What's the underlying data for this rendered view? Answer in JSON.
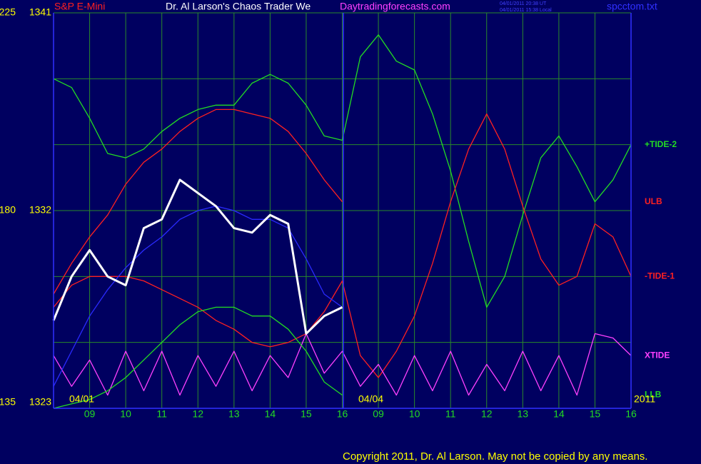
{
  "header": {
    "instrument": "S&P E-Mini",
    "title": "Dr. Al Larson's Chaos Trader We",
    "site": "Daytradingforecasts.com",
    "timestamp_ut": "04/01/2011 20:38 UT",
    "timestamp_local": "04/01/2011 15:38 Local",
    "file": "spcctom.txt"
  },
  "footer": {
    "copyright": "Copyright 2011, Dr. Al Larson. May not be copied by any means."
  },
  "chart_data": {
    "type": "line",
    "annotations": [
      "04/01",
      "04/04",
      "2011"
    ],
    "x": [
      0,
      0.5,
      1,
      1.5,
      2,
      2.5,
      3,
      3.5,
      4,
      4.5,
      5,
      5.5,
      6,
      6.5,
      7,
      7.5,
      8,
      8.5,
      9,
      9.5,
      10,
      10.5,
      11,
      11.5,
      12,
      12.5,
      13,
      13.5,
      14,
      14.5,
      15,
      15.5,
      16
    ],
    "xlim": [
      0,
      16
    ],
    "xticks": [
      {
        "value": 1,
        "label": "09"
      },
      {
        "value": 2,
        "label": "10"
      },
      {
        "value": 3,
        "label": "11"
      },
      {
        "value": 4,
        "label": "12"
      },
      {
        "value": 5,
        "label": "13"
      },
      {
        "value": 6,
        "label": "14"
      },
      {
        "value": 7,
        "label": "15"
      },
      {
        "value": 8,
        "label": "16"
      },
      {
        "value": 9,
        "label": "09"
      },
      {
        "value": 10,
        "label": "10"
      },
      {
        "value": 11,
        "label": "11"
      },
      {
        "value": 12,
        "label": "12"
      },
      {
        "value": 13,
        "label": "13"
      },
      {
        "value": 14,
        "label": "14"
      },
      {
        "value": 15,
        "label": "15"
      },
      {
        "value": 16,
        "label": "16"
      }
    ],
    "ylim": [
      135,
      225
    ],
    "yticks": [
      135,
      180,
      225
    ],
    "y2lim": [
      1323,
      1341
    ],
    "y2ticks": [
      1323,
      1332,
      1341
    ],
    "ygrid": [
      135,
      150,
      165,
      180,
      195,
      210,
      225
    ],
    "grid": true,
    "series": [
      {
        "name": "+TIDE-2",
        "color": "#22dd22",
        "values": [
          210,
          208,
          201,
          193,
          192,
          194,
          198,
          201,
          203,
          204,
          204,
          209,
          211,
          209,
          204,
          197,
          196,
          215,
          220,
          214,
          212,
          202,
          189,
          173,
          158,
          165,
          179,
          192,
          197,
          190,
          182,
          187,
          195
        ]
      },
      {
        "name": "ULB",
        "color": "#ff2020",
        "values": [
          161,
          168,
          174,
          179,
          186,
          191,
          194,
          198,
          201,
          203,
          203,
          202,
          201,
          198,
          193,
          187,
          182,
          null,
          null,
          null,
          null,
          null,
          null,
          null,
          null,
          null,
          null,
          null,
          null,
          null,
          null,
          null,
          null
        ]
      },
      {
        "name": "-TIDE-1",
        "color": "#ff2020",
        "values": [
          158,
          163,
          165,
          165,
          165,
          164,
          162,
          160,
          158,
          155,
          153,
          150,
          149,
          150,
          152,
          157,
          164,
          147,
          142,
          148,
          156,
          168,
          182,
          194,
          202,
          194,
          181,
          169,
          163,
          165,
          177,
          174,
          165
        ]
      },
      {
        "name": "XTIDE",
        "color": "#ff40ff",
        "values": [
          147,
          140,
          146,
          138,
          148,
          139,
          148,
          138,
          147,
          140,
          148,
          139,
          147,
          142,
          152,
          143,
          148,
          140,
          145,
          138,
          147,
          139,
          148,
          138,
          145,
          139,
          148,
          139,
          147,
          138,
          152,
          151,
          147
        ]
      },
      {
        "name": "LLB",
        "color": "#22dd22",
        "values": [
          135,
          136,
          137,
          139,
          142,
          146,
          150,
          154,
          157,
          158,
          158,
          156,
          156,
          153,
          148,
          141,
          138,
          null,
          null,
          null,
          null,
          null,
          null,
          null,
          null,
          null,
          null,
          null,
          null,
          null,
          null,
          null,
          null
        ]
      },
      {
        "color": "#2a2aff",
        "values": [
          140,
          148,
          156,
          162,
          167,
          171,
          174,
          178,
          180,
          181,
          180,
          178,
          178,
          176,
          169,
          161,
          158,
          null,
          null,
          null,
          null,
          null,
          null,
          null,
          null,
          null,
          null,
          null,
          null,
          null,
          null,
          null,
          null
        ]
      },
      {
        "color": "#ffffff",
        "values": [
          155,
          165,
          171,
          165,
          163,
          176,
          178,
          187,
          184,
          181,
          176,
          175,
          179,
          177,
          152,
          156,
          158,
          null,
          null,
          null,
          null,
          null,
          null,
          null,
          null,
          null,
          null,
          null,
          null,
          null,
          null,
          null,
          null
        ]
      }
    ]
  }
}
